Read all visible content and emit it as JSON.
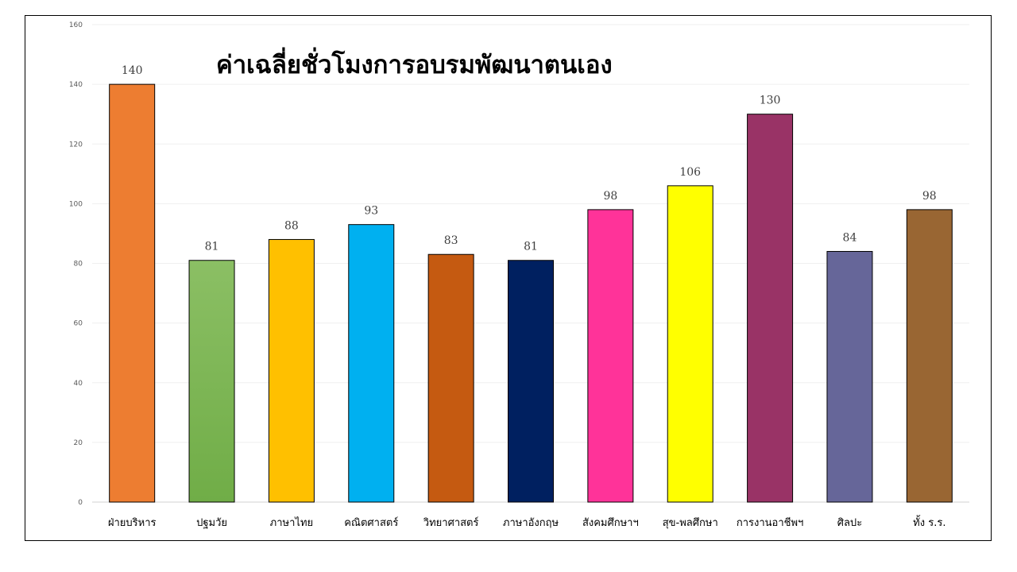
{
  "chart_data": {
    "type": "bar",
    "title": "ค่าเฉลี่ยชั่วโมงการอบรมพัฒนาตนเอง",
    "xlabel": "",
    "ylabel": "",
    "ylim": [
      0,
      160
    ],
    "yticks": [
      0,
      20,
      40,
      60,
      80,
      100,
      120,
      140,
      160
    ],
    "grid": true,
    "legend": "none",
    "categories": [
      "ฝ่ายบริหาร",
      "ปฐมวัย",
      "ภาษาไทย",
      "คณิตศาสตร์",
      "วิทยาศาสตร์",
      "ภาษาอังกฤษ",
      "สังคมศึกษาฯ",
      "สุข-พลศึกษา",
      "การงานอาชีพฯ",
      "ศิลปะ",
      "ทั้ง ร.ร."
    ],
    "values": [
      140,
      81,
      88,
      93,
      83,
      81,
      98,
      106,
      130,
      84,
      98
    ],
    "data_labels": [
      "140",
      "81",
      "88",
      "93",
      "83",
      "81",
      "98",
      "106",
      "130",
      "84",
      "98"
    ],
    "colors": [
      "#ED7D31",
      "#70AD47",
      "#FFC000",
      "#00B0F0",
      "#C55A11",
      "#002060",
      "#FF3399",
      "#FFFF00",
      "#993366",
      "#666699",
      "#996633"
    ]
  }
}
